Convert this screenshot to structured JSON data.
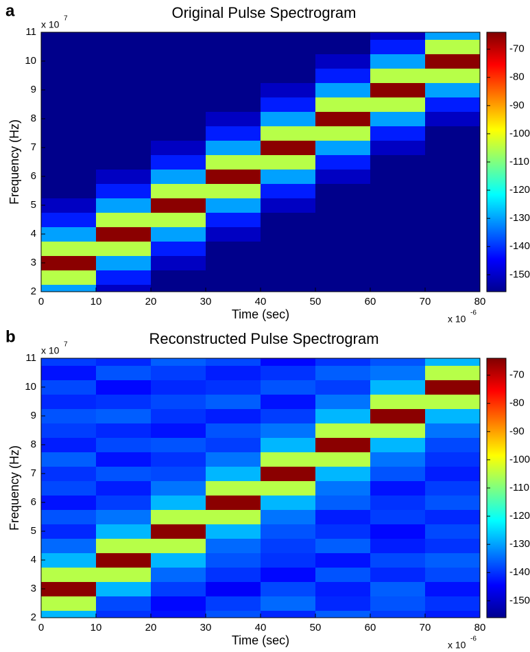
{
  "chart_data": [
    {
      "type": "heatmap",
      "panel_label": "a",
      "title": "Original Pulse Spectrogram",
      "xlabel": "Time (sec)",
      "ylabel": "Frequency (Hz)",
      "x_multiplier": "x 10",
      "x_exponent": "-6",
      "y_multiplier": "x 10",
      "y_exponent": "7",
      "xlim": [
        0,
        80
      ],
      "ylim": [
        2,
        11
      ],
      "xticks": [
        0,
        10,
        20,
        30,
        40,
        50,
        60,
        70,
        80
      ],
      "yticks": [
        2,
        3,
        4,
        5,
        6,
        7,
        8,
        9,
        10,
        11
      ],
      "x_bins": [
        0,
        10,
        20,
        30,
        40,
        50,
        60,
        70,
        80
      ],
      "y_bins": [
        2,
        2.25,
        2.75,
        3.25,
        3.75,
        4.25,
        4.75,
        5.25,
        5.75,
        6.25,
        6.75,
        7.25,
        7.75,
        8.25,
        8.75,
        9.25,
        9.75,
        10.25,
        10.75,
        11
      ],
      "colormap": "jet",
      "clim": [
        -156,
        -64
      ],
      "colorbar_ticks": [
        -70,
        -80,
        -90,
        -100,
        -110,
        -120,
        -130,
        -140,
        -150
      ],
      "values": [
        [
          -130,
          -150,
          -155,
          -155,
          -155,
          -155,
          -155,
          -155
        ],
        [
          -105,
          -142,
          -155,
          -155,
          -155,
          -155,
          -155,
          -155
        ],
        [
          -65,
          -130,
          -150,
          -155,
          -155,
          -155,
          -155,
          -155
        ],
        [
          -105,
          -105,
          -142,
          -155,
          -155,
          -155,
          -155,
          -155
        ],
        [
          -130,
          -65,
          -130,
          -150,
          -155,
          -155,
          -155,
          -155
        ],
        [
          -142,
          -105,
          -105,
          -142,
          -155,
          -155,
          -155,
          -155
        ],
        [
          -150,
          -130,
          -65,
          -130,
          -150,
          -155,
          -155,
          -155
        ],
        [
          -155,
          -142,
          -105,
          -105,
          -142,
          -155,
          -155,
          -155
        ],
        [
          -155,
          -150,
          -130,
          -65,
          -130,
          -150,
          -155,
          -155
        ],
        [
          -155,
          -155,
          -142,
          -105,
          -105,
          -142,
          -155,
          -155
        ],
        [
          -155,
          -155,
          -150,
          -130,
          -65,
          -130,
          -150,
          -155
        ],
        [
          -155,
          -155,
          -155,
          -142,
          -105,
          -105,
          -142,
          -155
        ],
        [
          -155,
          -155,
          -155,
          -150,
          -130,
          -65,
          -130,
          -150
        ],
        [
          -155,
          -155,
          -155,
          -155,
          -142,
          -105,
          -105,
          -142
        ],
        [
          -155,
          -155,
          -155,
          -155,
          -150,
          -130,
          -65,
          -130
        ],
        [
          -155,
          -155,
          -155,
          -155,
          -155,
          -142,
          -105,
          -105
        ],
        [
          -155,
          -155,
          -155,
          -155,
          -155,
          -150,
          -130,
          -65
        ],
        [
          -155,
          -155,
          -155,
          -155,
          -155,
          -155,
          -142,
          -105
        ],
        [
          -155,
          -155,
          -155,
          -155,
          -155,
          -155,
          -150,
          -130
        ]
      ]
    },
    {
      "type": "heatmap",
      "panel_label": "b",
      "title": "Reconstructed Pulse Spectrogram",
      "xlabel": "Time (sec)",
      "ylabel": "Frequency (Hz)",
      "x_multiplier": "x 10",
      "x_exponent": "-6",
      "y_multiplier": "x 10",
      "y_exponent": "7",
      "xlim": [
        0,
        80
      ],
      "ylim": [
        2,
        11
      ],
      "xticks": [
        0,
        10,
        20,
        30,
        40,
        50,
        60,
        70,
        80
      ],
      "yticks": [
        2,
        3,
        4,
        5,
        6,
        7,
        8,
        9,
        10,
        11
      ],
      "x_bins": [
        0,
        10,
        20,
        30,
        40,
        50,
        60,
        70,
        80
      ],
      "y_bins": [
        2,
        2.25,
        2.75,
        3.25,
        3.75,
        4.25,
        4.75,
        5.25,
        5.75,
        6.25,
        6.75,
        7.25,
        7.75,
        8.25,
        8.75,
        9.25,
        9.75,
        10.25,
        10.75,
        11
      ],
      "colormap": "jet",
      "clim": [
        -156,
        -64
      ],
      "colorbar_ticks": [
        -70,
        -80,
        -90,
        -100,
        -110,
        -120,
        -130,
        -140,
        -150
      ],
      "values": [
        [
          -128,
          -140,
          -143,
          -137,
          -141,
          -136,
          -139,
          -142
        ],
        [
          -105,
          -138,
          -144,
          -139,
          -135,
          -141,
          -137,
          -140
        ],
        [
          -65,
          -128,
          -139,
          -145,
          -138,
          -142,
          -136,
          -143
        ],
        [
          -105,
          -105,
          -135,
          -140,
          -144,
          -137,
          -141,
          -138
        ],
        [
          -128,
          -65,
          -128,
          -137,
          -140,
          -143,
          -138,
          -136
        ],
        [
          -135,
          -105,
          -105,
          -135,
          -139,
          -136,
          -142,
          -140
        ],
        [
          -141,
          -128,
          -65,
          -128,
          -137,
          -140,
          -144,
          -138
        ],
        [
          -137,
          -134,
          -105,
          -105,
          -134,
          -142,
          -139,
          -141
        ],
        [
          -143,
          -139,
          -128,
          -65,
          -128,
          -136,
          -140,
          -137
        ],
        [
          -138,
          -142,
          -134,
          -105,
          -105,
          -134,
          -143,
          -139
        ],
        [
          -140,
          -137,
          -138,
          -128,
          -65,
          -128,
          -137,
          -142
        ],
        [
          -136,
          -143,
          -140,
          -134,
          -105,
          -105,
          -134,
          -140
        ],
        [
          -142,
          -138,
          -137,
          -139,
          -128,
          -65,
          -128,
          -138
        ],
        [
          -139,
          -141,
          -143,
          -137,
          -134,
          -105,
          -105,
          -134
        ],
        [
          -137,
          -136,
          -140,
          -142,
          -139,
          -128,
          -65,
          -128
        ],
        [
          -141,
          -140,
          -138,
          -136,
          -143,
          -134,
          -105,
          -105
        ],
        [
          -138,
          -144,
          -141,
          -140,
          -137,
          -139,
          -128,
          -65
        ],
        [
          -143,
          -137,
          -139,
          -142,
          -140,
          -136,
          -134,
          -105
        ],
        [
          -139,
          -141,
          -136,
          -138,
          -144,
          -140,
          -137,
          -128
        ]
      ]
    }
  ]
}
